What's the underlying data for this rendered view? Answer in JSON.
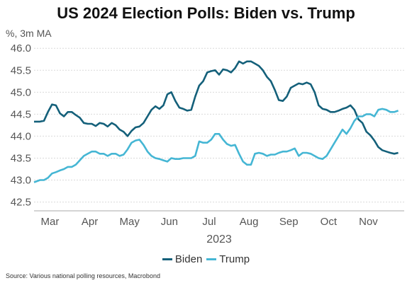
{
  "chart_data": {
    "type": "line",
    "title": "US 2024 Election Polls: Biden vs. Trump",
    "ylabel": "%, 3m MA",
    "xlabel": "2023",
    "ylim": [
      42.3,
      46.1
    ],
    "yticks": [
      "46.0",
      "45.5",
      "45.0",
      "44.5",
      "44.0",
      "43.5",
      "43.0",
      "42.5"
    ],
    "ytick_values": [
      46.0,
      45.5,
      45.0,
      44.5,
      44.0,
      43.5,
      43.0,
      42.5
    ],
    "xlim": [
      0,
      9.3
    ],
    "xticks": [
      "Mar",
      "Apr",
      "May",
      "Jun",
      "Jul",
      "Aug",
      "Sep",
      "Oct",
      "Nov"
    ],
    "grid": true,
    "legend_position": "bottom-center",
    "series": [
      {
        "name": "Biden",
        "color": "#14607a",
        "x": [
          0.0,
          0.15,
          0.25,
          0.35,
          0.45,
          0.55,
          0.65,
          0.75,
          0.85,
          0.95,
          1.05,
          1.15,
          1.25,
          1.35,
          1.45,
          1.55,
          1.65,
          1.75,
          1.85,
          1.95,
          2.05,
          2.15,
          2.25,
          2.35,
          2.45,
          2.55,
          2.65,
          2.75,
          2.85,
          2.95,
          3.05,
          3.15,
          3.25,
          3.35,
          3.45,
          3.55,
          3.65,
          3.75,
          3.85,
          3.95,
          4.05,
          4.15,
          4.25,
          4.35,
          4.45,
          4.55,
          4.65,
          4.75,
          4.85,
          4.95,
          5.05,
          5.15,
          5.25,
          5.35,
          5.45,
          5.55,
          5.65,
          5.75,
          5.85,
          5.95,
          6.05,
          6.15,
          6.25,
          6.35,
          6.45,
          6.55,
          6.65,
          6.75,
          6.85,
          6.95,
          7.05,
          7.15,
          7.25,
          7.35,
          7.45,
          7.55,
          7.65,
          7.75,
          7.85,
          7.95,
          8.05,
          8.15,
          8.25,
          8.35,
          8.45,
          8.55,
          8.65,
          8.75,
          8.85,
          8.95,
          9.05,
          9.15
        ],
        "values": [
          44.33,
          44.33,
          44.35,
          44.55,
          44.72,
          44.7,
          44.52,
          44.45,
          44.55,
          44.55,
          44.48,
          44.42,
          44.3,
          44.28,
          44.28,
          44.23,
          44.3,
          44.28,
          44.22,
          44.3,
          44.25,
          44.15,
          44.1,
          44.0,
          44.12,
          44.2,
          44.22,
          44.3,
          44.45,
          44.6,
          44.68,
          44.62,
          44.7,
          44.95,
          45.0,
          44.8,
          44.65,
          44.62,
          44.58,
          44.6,
          44.9,
          45.15,
          45.25,
          45.45,
          45.48,
          45.5,
          45.4,
          45.52,
          45.5,
          45.45,
          45.55,
          45.7,
          45.65,
          45.7,
          45.7,
          45.65,
          45.6,
          45.5,
          45.35,
          45.25,
          45.05,
          44.82,
          44.8,
          44.9,
          45.1,
          45.15,
          45.2,
          45.18,
          45.22,
          45.18,
          45.0,
          44.7,
          44.62,
          44.6,
          44.55,
          44.55,
          44.58,
          44.62,
          44.65,
          44.7,
          44.6,
          44.38,
          44.3,
          44.1,
          44.02,
          43.9,
          43.75,
          43.68,
          43.65,
          43.62,
          43.6,
          43.62
        ]
      },
      {
        "name": "Trump",
        "color": "#45b6d4",
        "x": [
          0.0,
          0.15,
          0.25,
          0.35,
          0.45,
          0.55,
          0.65,
          0.75,
          0.85,
          0.95,
          1.05,
          1.15,
          1.25,
          1.35,
          1.45,
          1.55,
          1.65,
          1.75,
          1.85,
          1.95,
          2.05,
          2.15,
          2.25,
          2.35,
          2.45,
          2.55,
          2.65,
          2.75,
          2.85,
          2.95,
          3.05,
          3.15,
          3.25,
          3.35,
          3.45,
          3.55,
          3.65,
          3.75,
          3.85,
          3.95,
          4.05,
          4.15,
          4.25,
          4.35,
          4.45,
          4.55,
          4.65,
          4.75,
          4.85,
          4.95,
          5.05,
          5.15,
          5.25,
          5.35,
          5.45,
          5.55,
          5.65,
          5.75,
          5.85,
          5.95,
          6.05,
          6.15,
          6.25,
          6.35,
          6.45,
          6.55,
          6.65,
          6.75,
          6.85,
          6.95,
          7.05,
          7.15,
          7.25,
          7.35,
          7.45,
          7.55,
          7.65,
          7.75,
          7.85,
          7.95,
          8.05,
          8.15,
          8.25,
          8.35,
          8.45,
          8.55,
          8.65,
          8.75,
          8.85,
          8.95,
          9.05,
          9.15
        ],
        "values": [
          42.95,
          43.0,
          43.0,
          43.05,
          43.15,
          43.18,
          43.22,
          43.25,
          43.3,
          43.3,
          43.35,
          43.45,
          43.55,
          43.6,
          43.65,
          43.65,
          43.6,
          43.6,
          43.55,
          43.6,
          43.6,
          43.55,
          43.58,
          43.7,
          43.85,
          43.9,
          43.92,
          43.8,
          43.65,
          43.55,
          43.5,
          43.48,
          43.45,
          43.42,
          43.5,
          43.48,
          43.48,
          43.5,
          43.5,
          43.5,
          43.55,
          43.88,
          43.85,
          43.85,
          43.92,
          44.05,
          44.05,
          43.92,
          43.82,
          43.78,
          43.8,
          43.6,
          43.42,
          43.35,
          43.35,
          43.6,
          43.62,
          43.6,
          43.55,
          43.58,
          43.58,
          43.62,
          43.65,
          43.65,
          43.68,
          43.72,
          43.55,
          43.62,
          43.62,
          43.6,
          43.55,
          43.5,
          43.48,
          43.55,
          43.7,
          43.85,
          44.0,
          44.15,
          44.05,
          44.18,
          44.35,
          44.45,
          44.45,
          44.5,
          44.5,
          44.45,
          44.6,
          44.62,
          44.6,
          44.55,
          44.55,
          44.58
        ]
      }
    ]
  },
  "source": "Source: Various national polling resources, Macrobond"
}
